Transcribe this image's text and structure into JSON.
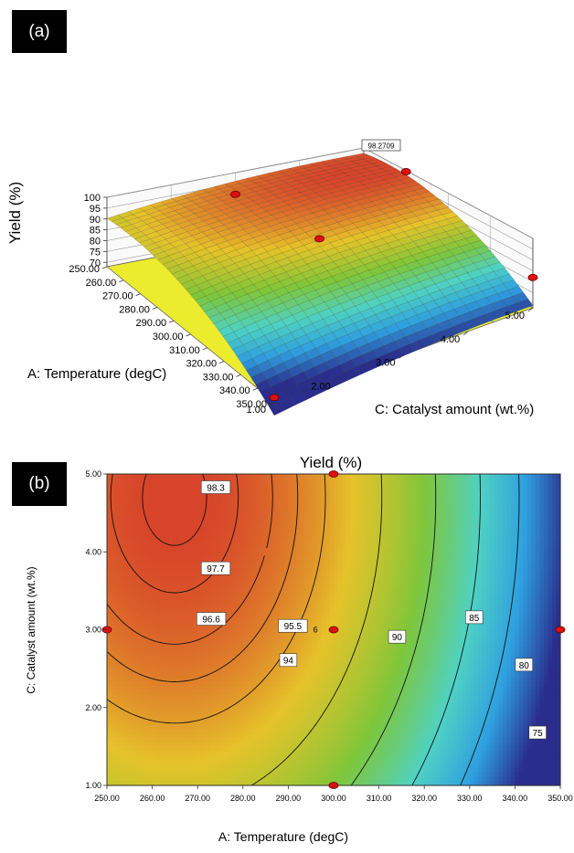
{
  "chart_data": [
    {
      "panel": "(a)",
      "type": "surface3d",
      "zlabel": "Yield (%)",
      "xlabel": "A: Temperature (degC)",
      "ylabel": "C: Catalyst amount (wt.%)",
      "z_ticks": [
        "70",
        "75",
        "80",
        "85",
        "90",
        "95",
        "100"
      ],
      "x_ticks": [
        "250.00",
        "260.00",
        "270.00",
        "280.00",
        "290.00",
        "300.00",
        "310.00",
        "320.00",
        "330.00",
        "340.00",
        "350.00"
      ],
      "y_ticks": [
        "1.00",
        "2.00",
        "3.00",
        "4.00",
        "5.00"
      ],
      "max_label": "98.2709",
      "xlim": [
        250,
        350
      ],
      "ylim": [
        1,
        5
      ],
      "zlim": [
        68,
        100
      ],
      "design_points": [
        {
          "x": 300,
          "y": 3,
          "z": 95.5
        },
        {
          "x": 275,
          "y": 5,
          "z": 99.5
        },
        {
          "x": 350,
          "y": 5,
          "z": 82
        },
        {
          "x": 250,
          "y": 3,
          "z": 90
        },
        {
          "x": 350,
          "y": 1,
          "z": 70
        }
      ],
      "colorscale": [
        "#2a2d8c",
        "#2f9fe0",
        "#4fd2c2",
        "#7fc63a",
        "#e6c32a",
        "#d8452a"
      ]
    },
    {
      "panel": "(b)",
      "type": "contour",
      "title": "Yield (%)",
      "xlabel": "A: Temperature (degC)",
      "ylabel": "C: Catalyst amount (wt.%)",
      "x_ticks": [
        "250.00",
        "260.00",
        "270.00",
        "280.00",
        "290.00",
        "300.00",
        "310.00",
        "320.00",
        "330.00",
        "340.00",
        "350.00"
      ],
      "y_ticks": [
        "1.00",
        "2.00",
        "3.00",
        "4.00",
        "5.00"
      ],
      "xlim": [
        250,
        350
      ],
      "ylim": [
        1,
        5
      ],
      "contour_levels": [
        98.3,
        97.7,
        96.6,
        95.5,
        94,
        90,
        85,
        80,
        75
      ],
      "contour_labels": [
        {
          "text": "98.3",
          "x": 274,
          "y": 4.83
        },
        {
          "text": "97.7",
          "x": 274,
          "y": 3.79
        },
        {
          "text": "96.6",
          "x": 273,
          "y": 3.14
        },
        {
          "text": "95.5",
          "x": 291,
          "y": 3.05
        },
        {
          "text": "94",
          "x": 290,
          "y": 2.61
        },
        {
          "text": "90",
          "x": 314,
          "y": 2.91
        },
        {
          "text": "85",
          "x": 331,
          "y": 3.16
        },
        {
          "text": "80",
          "x": 342,
          "y": 2.55
        },
        {
          "text": "75",
          "x": 345,
          "y": 1.68
        }
      ],
      "center_label": "6",
      "design_points": [
        {
          "x": 300,
          "y": 5
        },
        {
          "x": 250,
          "y": 3
        },
        {
          "x": 300,
          "y": 3
        },
        {
          "x": 350,
          "y": 3
        },
        {
          "x": 300,
          "y": 1
        }
      ],
      "colorscale": [
        "#2a2d8c",
        "#2f9fe0",
        "#4fd2c2",
        "#7fc63a",
        "#e6c32a",
        "#d8452a"
      ]
    }
  ]
}
